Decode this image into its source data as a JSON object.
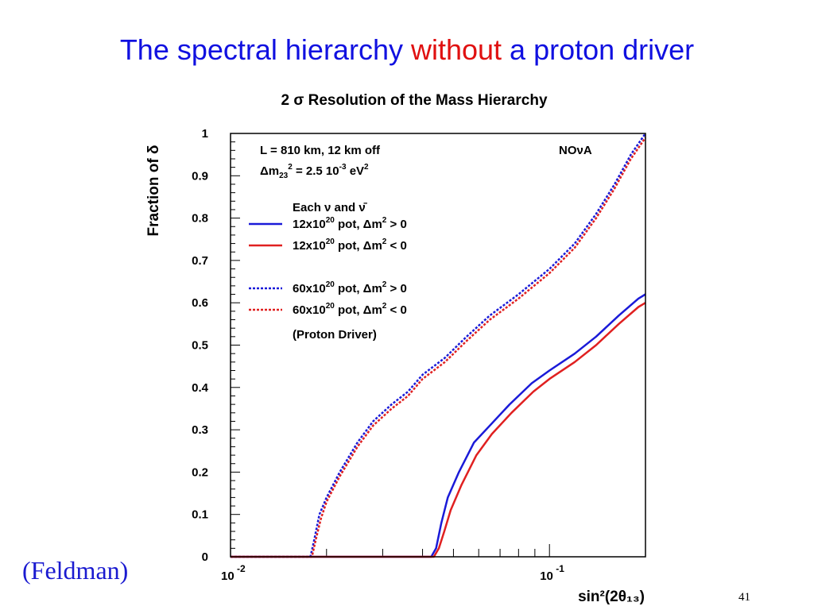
{
  "slide": {
    "title_part1": "The spectral hierarchy ",
    "title_highlight": "without",
    "title_part3": " a proton driver",
    "credit": "(Feldman)",
    "page_number": "41",
    "colors": {
      "title": "#1010e0",
      "highlight": "#e01010",
      "credit": "#1a1ad0"
    }
  },
  "chart_data": {
    "type": "line",
    "title": "2 σ Resolution of the Mass Hierarchy",
    "xlabel": "sin²(2θ₁₃)",
    "ylabel": "Fraction of δ",
    "xscale": "log",
    "xlim": [
      0.01,
      0.2
    ],
    "ylim": [
      0,
      1
    ],
    "x_tick_labels": [
      {
        "value": 0.01,
        "base": "10",
        "exp": "-2"
      },
      {
        "value": 0.1,
        "base": "10",
        "exp": "-1"
      }
    ],
    "y_ticks": [
      0,
      0.1,
      0.2,
      0.3,
      0.4,
      0.5,
      0.6,
      0.7,
      0.8,
      0.9,
      1
    ],
    "y_tick_labels": [
      "0",
      "0.1",
      "0.2",
      "0.3",
      "0.4",
      "0.5",
      "0.6",
      "0.7",
      "0.8",
      "0.9",
      "1"
    ],
    "grid": false,
    "annotations": {
      "setup_line1": "L = 810 km, 12 km off",
      "setup_line2_prefix": "Δm",
      "setup_line2_sub": "23",
      "setup_line2_sup": "2",
      "setup_line2_rest": " = 2.5 10",
      "setup_line2_exp": "-3",
      "setup_line2_unit": " eV",
      "setup_line2_unit_sup": "2",
      "experiment": "NOνA",
      "legend_header": "Each ν and ν̄",
      "legend_footer": "(Proton Driver)"
    },
    "legend": [
      {
        "label_prefix": "12x10",
        "label_exp": "20",
        "label_mid": " pot, Δm",
        "label_sup": "2",
        "label_rel": " >  0",
        "color": "#1a1ad8",
        "dash": false
      },
      {
        "label_prefix": "12x10",
        "label_exp": "20",
        "label_mid": " pot, Δm",
        "label_sup": "2",
        "label_rel": " <  0",
        "color": "#e02020",
        "dash": false
      },
      {
        "label_prefix": "60x10",
        "label_exp": "20",
        "label_mid": " pot, Δm",
        "label_sup": "2",
        "label_rel": " >  0",
        "color": "#1a1ad8",
        "dash": true
      },
      {
        "label_prefix": "60x10",
        "label_exp": "20",
        "label_mid": " pot, Δm",
        "label_sup": "2",
        "label_rel": " <  0",
        "color": "#e02020",
        "dash": true
      }
    ],
    "series": [
      {
        "color": "#1a1ad8",
        "dash": false,
        "x": [
          0.01,
          0.0426,
          0.0441,
          0.0458,
          0.048,
          0.052,
          0.058,
          0.065,
          0.075,
          0.088,
          0.1,
          0.12,
          0.14,
          0.165,
          0.19,
          0.2
        ],
        "y": [
          0,
          0,
          0.02,
          0.08,
          0.14,
          0.2,
          0.27,
          0.31,
          0.36,
          0.41,
          0.44,
          0.48,
          0.52,
          0.57,
          0.61,
          0.62
        ]
      },
      {
        "color": "#e02020",
        "dash": false,
        "x": [
          0.01,
          0.0434,
          0.045,
          0.0468,
          0.049,
          0.053,
          0.059,
          0.066,
          0.076,
          0.089,
          0.1,
          0.12,
          0.14,
          0.165,
          0.19,
          0.2
        ],
        "y": [
          0,
          0,
          0.02,
          0.06,
          0.11,
          0.17,
          0.24,
          0.29,
          0.34,
          0.39,
          0.42,
          0.46,
          0.5,
          0.55,
          0.59,
          0.6
        ]
      },
      {
        "color": "#1a1ad8",
        "dash": true,
        "x": [
          0.01,
          0.0178,
          0.0183,
          0.019,
          0.02,
          0.022,
          0.025,
          0.028,
          0.032,
          0.036,
          0.04,
          0.047,
          0.055,
          0.065,
          0.08,
          0.1,
          0.12,
          0.14,
          0.16,
          0.18,
          0.2
        ],
        "y": [
          0,
          0,
          0.04,
          0.1,
          0.14,
          0.2,
          0.27,
          0.32,
          0.36,
          0.39,
          0.43,
          0.47,
          0.52,
          0.57,
          0.62,
          0.68,
          0.74,
          0.81,
          0.88,
          0.95,
          1.0
        ]
      },
      {
        "color": "#e02020",
        "dash": true,
        "x": [
          0.01,
          0.018,
          0.0185,
          0.0192,
          0.02,
          0.022,
          0.025,
          0.028,
          0.032,
          0.036,
          0.04,
          0.047,
          0.055,
          0.065,
          0.08,
          0.1,
          0.12,
          0.14,
          0.16,
          0.18,
          0.2
        ],
        "y": [
          0,
          0,
          0.04,
          0.09,
          0.13,
          0.19,
          0.26,
          0.31,
          0.35,
          0.38,
          0.42,
          0.46,
          0.51,
          0.56,
          0.61,
          0.67,
          0.73,
          0.8,
          0.87,
          0.94,
          0.99
        ]
      }
    ]
  }
}
